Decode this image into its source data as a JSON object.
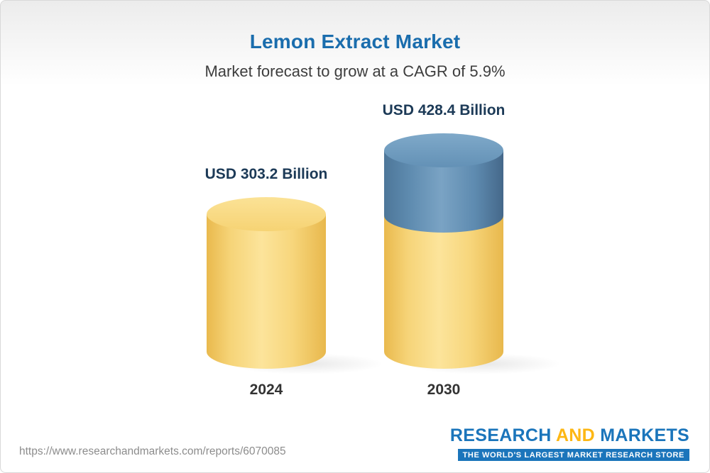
{
  "page": {
    "title": "Lemon Extract Market",
    "subtitle": "Market forecast to grow at a CAGR of 5.9%",
    "footer_url": "https://www.researchandmarkets.com/reports/6070085",
    "logo": {
      "research": "RESEARCH",
      "and": "AND",
      "markets": "MARKETS",
      "tagline": "THE WORLD'S LARGEST MARKET RESEARCH STORE"
    }
  },
  "chart_data": {
    "type": "bar",
    "title": "Lemon Extract Market",
    "subtitle": "Market forecast to grow at a CAGR of 5.9%",
    "cagr_percent": 5.9,
    "unit": "USD Billion",
    "categories": [
      "2024",
      "2030"
    ],
    "values": [
      303.2,
      428.4
    ],
    "value_labels": [
      "USD 303.2 Billion",
      "USD 428.4 Billion"
    ],
    "bar_style": "3d-cylinder",
    "bar_colors": {
      "base_yellow": "#f2c95c",
      "growth_blue": "#5d89ae"
    },
    "legend": "none",
    "grid": false
  },
  "colors": {
    "title_blue": "#1a6dad",
    "label_navy": "#1c3a57",
    "logo_blue": "#1b75bb",
    "logo_gold": "#fdb714"
  }
}
